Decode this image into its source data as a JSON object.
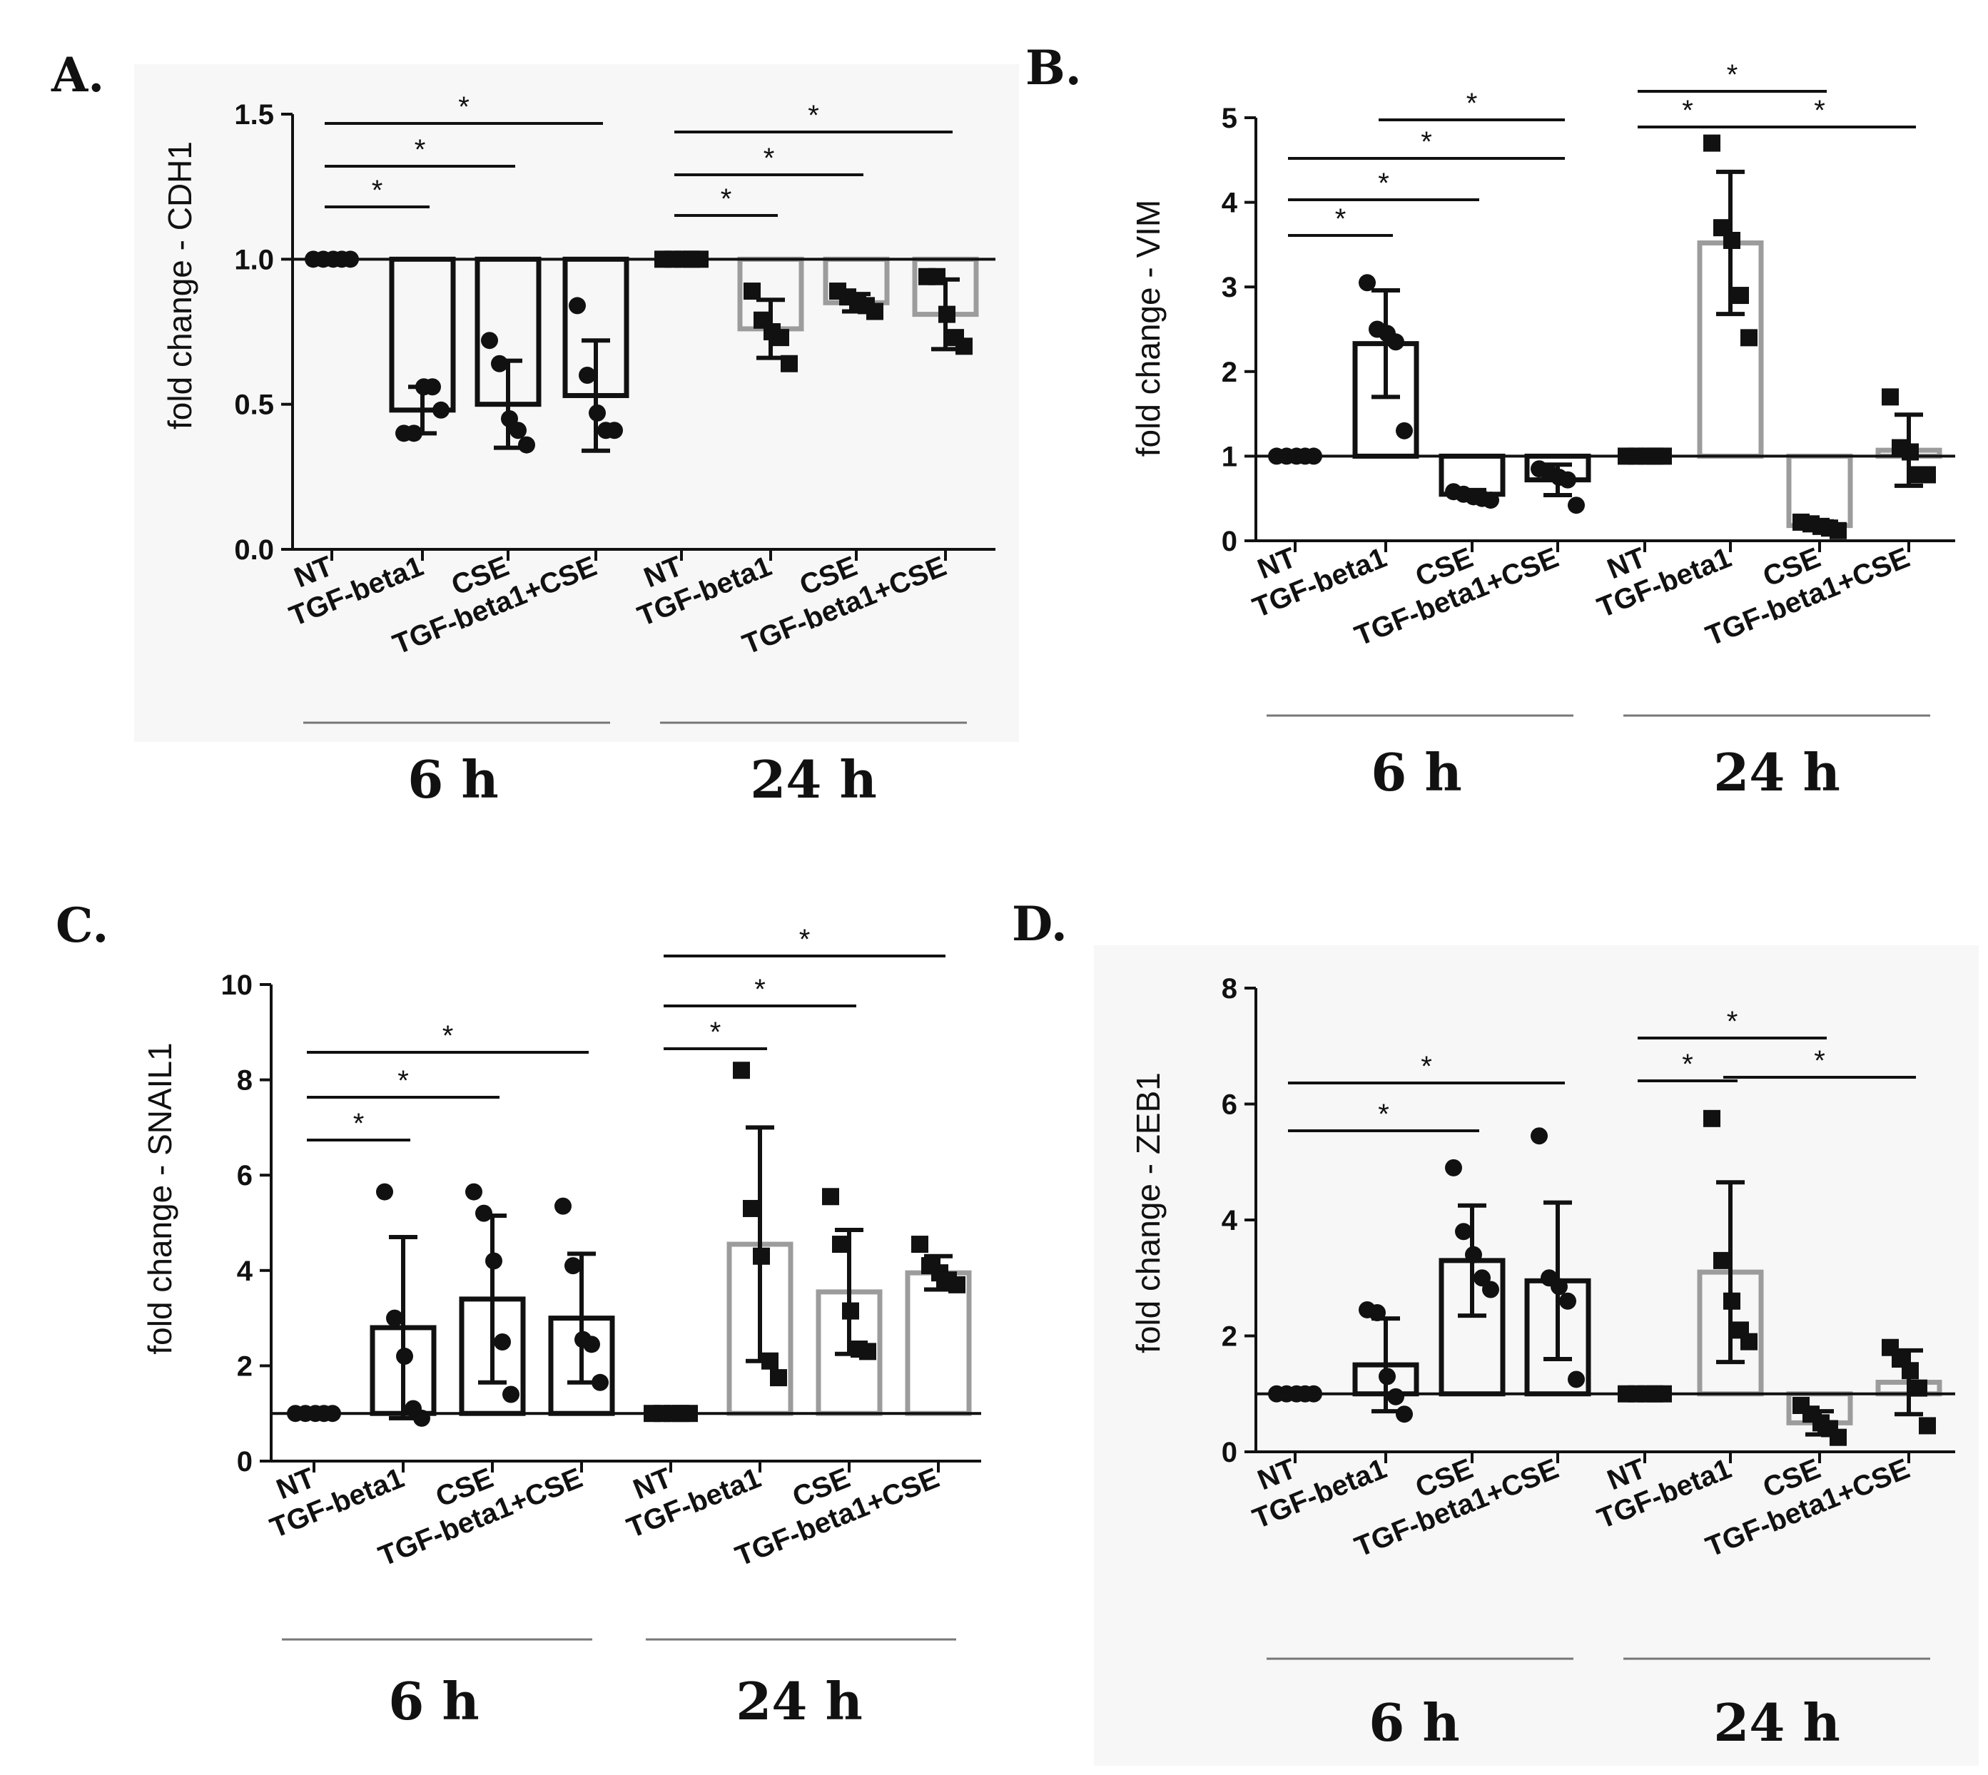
{
  "time_labels": [
    "6 h",
    "24 h"
  ],
  "colors": {
    "bar_6h": "#111111",
    "bar_24h": "#9c9c9c",
    "points": "#111111",
    "axis": "#111111",
    "panel_bg": "#f7f7f7"
  },
  "chart_data": [
    {
      "id": "A",
      "type": "bar",
      "panel_label": "A.",
      "title": "",
      "xlabel": "",
      "ylabel": "fold change - CDH1",
      "ylim": [
        0,
        1.5
      ],
      "yticks": [
        "0.0",
        "0.5",
        "1.0",
        "1.5"
      ],
      "baseline": 1.0,
      "categories": [
        "NT",
        "TGF-beta1",
        "CSE",
        "TGF-beta1+CSE",
        "NT",
        "TGF-beta1",
        "CSE",
        "TGF-beta1+CSE"
      ],
      "groups": [
        "6 h",
        "6 h",
        "6 h",
        "6 h",
        "24 h",
        "24 h",
        "24 h",
        "24 h"
      ],
      "marker": [
        "circle",
        "circle",
        "circle",
        "circle",
        "square",
        "square",
        "square",
        "square"
      ],
      "series": [
        {
          "name": "mean",
          "values": [
            1.0,
            0.48,
            0.5,
            0.53,
            1.0,
            0.76,
            0.85,
            0.81
          ]
        },
        {
          "name": "sd",
          "values": [
            0,
            0.08,
            0.15,
            0.19,
            0,
            0.1,
            0.03,
            0.12
          ]
        }
      ],
      "points": [
        [
          1.0,
          1.0,
          1.0,
          1.0,
          1.0
        ],
        [
          0.4,
          0.4,
          0.56,
          0.56,
          0.48
        ],
        [
          0.72,
          0.64,
          0.45,
          0.41,
          0.36
        ],
        [
          0.84,
          0.6,
          0.47,
          0.41,
          0.41
        ],
        [
          1.0,
          1.0,
          1.0,
          1.0,
          1.0
        ],
        [
          0.89,
          0.79,
          0.75,
          0.73,
          0.64
        ],
        [
          0.89,
          0.87,
          0.85,
          0.84,
          0.82
        ],
        [
          0.94,
          0.94,
          0.81,
          0.73,
          0.7
        ]
      ],
      "significance": [
        {
          "from": 0,
          "to": 1,
          "label": "*"
        },
        {
          "from": 0,
          "to": 2,
          "label": "*"
        },
        {
          "from": 0,
          "to": 3,
          "label": "*"
        },
        {
          "from": 4,
          "to": 5,
          "label": "*"
        },
        {
          "from": 4,
          "to": 6,
          "label": "*"
        },
        {
          "from": 4,
          "to": 7,
          "label": "*"
        }
      ]
    },
    {
      "id": "B",
      "type": "bar",
      "panel_label": "B.",
      "title": "",
      "xlabel": "",
      "ylabel": "fold change - VIM",
      "ylim": [
        0,
        5
      ],
      "yticks": [
        "0",
        "1",
        "2",
        "3",
        "4",
        "5"
      ],
      "baseline": 1.0,
      "categories": [
        "NT",
        "TGF-beta1",
        "CSE",
        "TGF-beta1+CSE",
        "NT",
        "TGF-beta1",
        "CSE",
        "TGF-beta1+CSE"
      ],
      "groups": [
        "6 h",
        "6 h",
        "6 h",
        "6 h",
        "24 h",
        "24 h",
        "24 h",
        "24 h"
      ],
      "marker": [
        "circle",
        "circle",
        "circle",
        "circle",
        "square",
        "square",
        "square",
        "square"
      ],
      "series": [
        {
          "name": "mean",
          "values": [
            1.0,
            2.33,
            0.55,
            0.72,
            1.0,
            3.52,
            0.18,
            1.07
          ]
        },
        {
          "name": "sd",
          "values": [
            0,
            0.63,
            0.05,
            0.18,
            0,
            0.84,
            0.05,
            0.42
          ]
        }
      ],
      "points": [
        [
          1.0,
          1.0,
          1.0,
          1.0,
          1.0
        ],
        [
          3.05,
          2.5,
          2.45,
          2.35,
          1.3
        ],
        [
          0.58,
          0.55,
          0.52,
          0.5,
          0.48
        ],
        [
          0.85,
          0.8,
          0.75,
          0.72,
          0.42
        ],
        [
          1.0,
          1.0,
          1.0,
          1.0,
          1.0
        ],
        [
          4.7,
          3.7,
          3.55,
          2.9,
          2.4
        ],
        [
          0.22,
          0.2,
          0.17,
          0.15,
          0.12
        ],
        [
          1.7,
          1.1,
          1.05,
          0.78,
          0.78
        ]
      ],
      "significance": [
        {
          "from": 0,
          "to": 1,
          "label": "*"
        },
        {
          "from": 0,
          "to": 2,
          "label": "*"
        },
        {
          "from": 0,
          "to": 3,
          "label": "*"
        },
        {
          "from": 1,
          "to": 3,
          "label": "*"
        },
        {
          "from": 4,
          "to": 5,
          "label": "*"
        },
        {
          "from": 4,
          "to": 6,
          "label": "*"
        },
        {
          "from": 5,
          "to": 7,
          "label": "*"
        }
      ]
    },
    {
      "id": "C",
      "type": "bar",
      "panel_label": "C.",
      "title": "",
      "xlabel": "",
      "ylabel": "fold change - SNAIL1",
      "ylim": [
        0,
        10
      ],
      "yticks": [
        "0",
        "2",
        "4",
        "6",
        "8",
        "10"
      ],
      "baseline": 1.0,
      "categories": [
        "NT",
        "TGF-beta1",
        "CSE",
        "TGF-beta1+CSE",
        "NT",
        "TGF-beta1",
        "CSE",
        "TGF-beta1+CSE"
      ],
      "groups": [
        "6 h",
        "6 h",
        "6 h",
        "6 h",
        "24 h",
        "24 h",
        "24 h",
        "24 h"
      ],
      "marker": [
        "circle",
        "circle",
        "circle",
        "circle",
        "square",
        "square",
        "square",
        "square"
      ],
      "series": [
        {
          "name": "mean",
          "values": [
            1.0,
            2.8,
            3.4,
            3.0,
            1.0,
            4.55,
            3.55,
            3.95
          ]
        },
        {
          "name": "sd",
          "values": [
            0,
            1.9,
            1.75,
            1.35,
            0,
            2.45,
            1.3,
            0.35
          ]
        }
      ],
      "points": [
        [
          1.0,
          1.0,
          1.0,
          1.0,
          1.0
        ],
        [
          5.65,
          3.0,
          2.2,
          1.1,
          0.9
        ],
        [
          5.65,
          5.2,
          4.2,
          2.5,
          1.4
        ],
        [
          5.35,
          4.1,
          2.55,
          2.45,
          1.65
        ],
        [
          1.0,
          1.0,
          1.0,
          1.0,
          1.0
        ],
        [
          8.2,
          5.3,
          4.3,
          2.1,
          1.75
        ],
        [
          5.55,
          4.55,
          3.15,
          2.35,
          2.3
        ],
        [
          4.55,
          4.1,
          3.95,
          3.8,
          3.7
        ]
      ],
      "significance": [
        {
          "from": 0,
          "to": 1,
          "label": "*"
        },
        {
          "from": 0,
          "to": 2,
          "label": "*"
        },
        {
          "from": 0,
          "to": 3,
          "label": "*"
        },
        {
          "from": 4,
          "to": 5,
          "label": "*"
        },
        {
          "from": 4,
          "to": 6,
          "label": "*"
        },
        {
          "from": 4,
          "to": 7,
          "label": "*"
        }
      ]
    },
    {
      "id": "D",
      "type": "bar",
      "panel_label": "D.",
      "title": "",
      "xlabel": "",
      "ylabel": "fold change - ZEB1",
      "ylim": [
        0,
        8
      ],
      "yticks": [
        "0",
        "2",
        "4",
        "6",
        "8"
      ],
      "baseline": 1.0,
      "categories": [
        "NT",
        "TGF-beta1",
        "CSE",
        "TGF-beta1+CSE",
        "NT",
        "TGF-beta1",
        "CSE",
        "TGF-beta1+CSE"
      ],
      "groups": [
        "6 h",
        "6 h",
        "6 h",
        "6 h",
        "24 h",
        "24 h",
        "24 h",
        "24 h"
      ],
      "marker": [
        "circle",
        "circle",
        "circle",
        "circle",
        "square",
        "square",
        "square",
        "square"
      ],
      "series": [
        {
          "name": "mean",
          "values": [
            1.0,
            1.5,
            3.3,
            2.95,
            1.0,
            3.1,
            0.5,
            1.2
          ]
        },
        {
          "name": "sd",
          "values": [
            0,
            0.8,
            0.95,
            1.35,
            0,
            1.55,
            0.2,
            0.55
          ]
        }
      ],
      "points": [
        [
          1.0,
          1.0,
          1.0,
          1.0,
          1.0
        ],
        [
          2.45,
          2.4,
          1.3,
          0.95,
          0.65
        ],
        [
          4.9,
          3.8,
          3.4,
          3.0,
          2.8
        ],
        [
          5.45,
          3.0,
          2.85,
          2.6,
          1.25
        ],
        [
          1.0,
          1.0,
          1.0,
          1.0,
          1.0
        ],
        [
          5.75,
          3.3,
          2.6,
          2.1,
          1.9
        ],
        [
          0.8,
          0.65,
          0.5,
          0.4,
          0.25
        ],
        [
          1.8,
          1.6,
          1.4,
          1.1,
          0.45
        ]
      ],
      "significance": [
        {
          "from": 0,
          "to": 2,
          "label": "*"
        },
        {
          "from": 0,
          "to": 3,
          "label": "*"
        },
        {
          "from": 4,
          "to": 5,
          "label": "*"
        },
        {
          "from": 4,
          "to": 6,
          "label": "*"
        },
        {
          "from": 5,
          "to": 7,
          "label": "*"
        }
      ]
    }
  ]
}
